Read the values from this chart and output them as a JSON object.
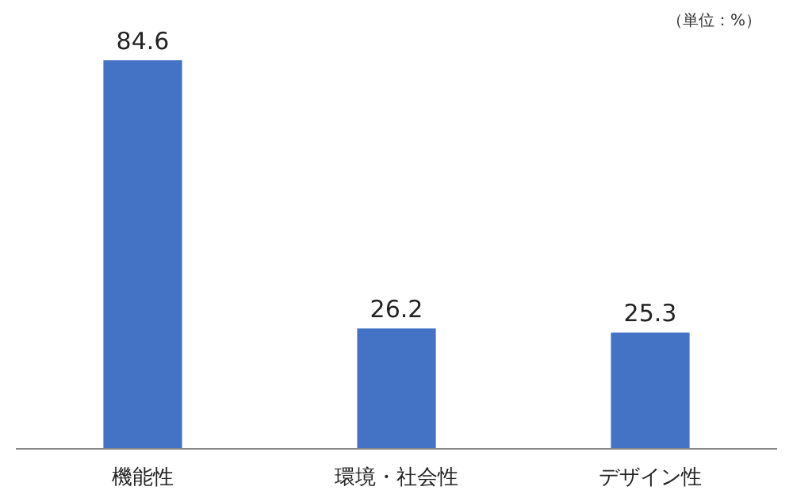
{
  "chart_data": {
    "type": "bar",
    "categories": [
      "機能性",
      "環境・社会性",
      "デザイン性"
    ],
    "values": [
      84.6,
      26.2,
      25.3
    ],
    "color": "#4472c4",
    "data_labels": true,
    "annotations": [
      "（単位：%）"
    ]
  }
}
